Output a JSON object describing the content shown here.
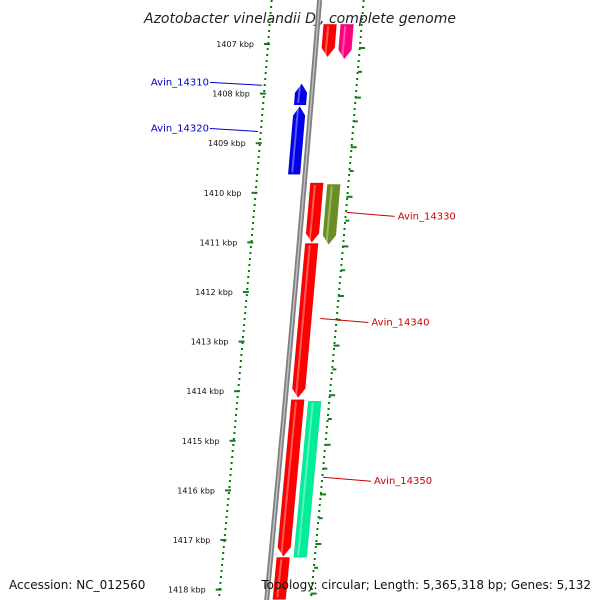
{
  "title": "Azotobacter vinelandii DJ, complete genome",
  "scale": {
    "unit": "kbp",
    "ticks": [
      {
        "kbp": 1407,
        "label": "1407 kbp"
      },
      {
        "kbp": 1408,
        "label": "1408 kbp"
      },
      {
        "kbp": 1409,
        "label": "1409 kbp"
      },
      {
        "kbp": 1410,
        "label": "1410 kbp"
      },
      {
        "kbp": 1411,
        "label": "1411 kbp"
      },
      {
        "kbp": 1412,
        "label": "1412 kbp"
      },
      {
        "kbp": 1413,
        "label": "1413 kbp"
      },
      {
        "kbp": 1414,
        "label": "1414 kbp"
      },
      {
        "kbp": 1415,
        "label": "1415 kbp"
      },
      {
        "kbp": 1416,
        "label": "1416 kbp"
      },
      {
        "kbp": 1417,
        "label": "1417 kbp"
      },
      {
        "kbp": 1418,
        "label": "1418 kbp"
      }
    ]
  },
  "genes": [
    {
      "id": "upper-red",
      "label": "",
      "strand": "-",
      "track": "inner-right",
      "start_kbp": 1406.6,
      "end_kbp": 1407.26,
      "color": "#ff0000"
    },
    {
      "id": "upper-pink",
      "label": "",
      "strand": "-",
      "track": "outer-right",
      "start_kbp": 1406.6,
      "end_kbp": 1407.3,
      "color": "#ff0080"
    },
    {
      "id": "Avin_14310",
      "label": "Avin_14310",
      "strand": "+",
      "track": "left",
      "start_kbp": 1407.8,
      "end_kbp": 1408.23,
      "color": "#0000ee",
      "label_color": "#0000cc"
    },
    {
      "id": "Avin_14320",
      "label": "Avin_14320",
      "strand": "+",
      "track": "left",
      "start_kbp": 1408.26,
      "end_kbp": 1409.63,
      "color": "#0000ee",
      "label_color": "#0000cc"
    },
    {
      "id": "red-1410",
      "label": "",
      "strand": "-",
      "track": "inner-right",
      "start_kbp": 1409.8,
      "end_kbp": 1411.0,
      "color": "#ff0000"
    },
    {
      "id": "Avin_14330",
      "label": "Avin_14330",
      "strand": "-",
      "track": "outer-right",
      "start_kbp": 1409.83,
      "end_kbp": 1411.04,
      "color": "#6b8e23",
      "label_color": "#cc0000"
    },
    {
      "id": "Avin_14340",
      "label": "Avin_14340",
      "strand": "-",
      "track": "inner-right",
      "start_kbp": 1411.02,
      "end_kbp": 1414.13,
      "color": "#ff0000",
      "label_color": "#cc0000"
    },
    {
      "id": "red-1414",
      "label": "",
      "strand": "-",
      "track": "inner-right",
      "start_kbp": 1414.17,
      "end_kbp": 1417.33,
      "color": "#ff0000"
    },
    {
      "id": "Avin_14350",
      "label": "Avin_14350",
      "strand": "",
      "track": "outer-right",
      "start_kbp": 1414.2,
      "end_kbp": 1417.35,
      "color": "#00ee99",
      "label_color": "#cc0000"
    },
    {
      "id": "red-1418",
      "label": "",
      "strand": "",
      "track": "inner-right",
      "start_kbp": 1417.35,
      "end_kbp": 1418.2,
      "color": "#ff0000"
    }
  ],
  "footer": {
    "accession": "Accession: NC_012560",
    "stats": "Topology: circular; Length: 5,365,318 bp; Genes: 5,132"
  },
  "colors": {
    "backbone": "#808080",
    "scale_dots": "#008000",
    "tick": "#1a7a1a",
    "minus_strand_label": "#cc0000",
    "plus_strand_label": "#0000cc"
  }
}
